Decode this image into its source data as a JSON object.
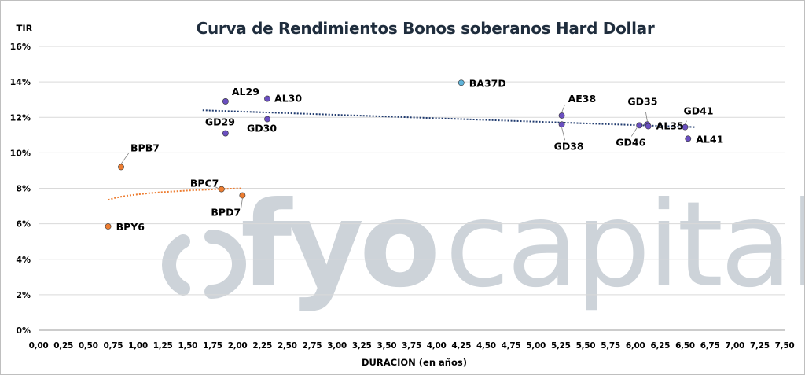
{
  "chart_data": {
    "type": "scatter",
    "title": "Curva de Rendimientos Bonos soberanos Hard Dollar",
    "ylabel": "TIR",
    "xlabel": "DURACION (en años)",
    "xlim": [
      0,
      7.5
    ],
    "ylim": [
      0,
      16
    ],
    "x_ticks": [
      "0,00",
      "0,25",
      "0,50",
      "0,75",
      "1,00",
      "1,25",
      "1,50",
      "1,75",
      "2,00",
      "2,25",
      "2,50",
      "2,75",
      "3,00",
      "3,25",
      "3,50",
      "3,75",
      "4,00",
      "4,25",
      "4,50",
      "4,75",
      "5,00",
      "5,25",
      "5,50",
      "5,75",
      "6,00",
      "6,25",
      "6,50",
      "6,75",
      "7,00",
      "7,25",
      "7,50"
    ],
    "y_ticks": [
      "0%",
      "2%",
      "4%",
      "6%",
      "8%",
      "10%",
      "12%",
      "14%",
      "16%"
    ],
    "grid": "horizontal",
    "watermark": "fyocapital",
    "colors": {
      "soberanos": "#6a4fc0",
      "provinciales": "#ed7d31",
      "ba37d": "#5fb3d9",
      "trend_soberanos": "#1f3a6e",
      "trend_provinciales": "#ed7d31"
    },
    "series": [
      {
        "group": "soberanos",
        "points": [
          {
            "label": "AL29",
            "x": 1.88,
            "y": 12.9
          },
          {
            "label": "AL30",
            "x": 2.3,
            "y": 13.05
          },
          {
            "label": "GD29",
            "x": 1.88,
            "y": 11.1
          },
          {
            "label": "GD30",
            "x": 2.3,
            "y": 11.9
          },
          {
            "label": "AE38",
            "x": 5.26,
            "y": 12.1
          },
          {
            "label": "GD38",
            "x": 5.26,
            "y": 11.6
          },
          {
            "label": "GD35",
            "x": 6.12,
            "y": 11.6
          },
          {
            "label": "GD46",
            "x": 6.04,
            "y": 11.55
          },
          {
            "label": "AL35",
            "x": 6.13,
            "y": 11.5
          },
          {
            "label": "GD41",
            "x": 6.5,
            "y": 11.45
          },
          {
            "label": "AL41",
            "x": 6.53,
            "y": 10.8
          }
        ]
      },
      {
        "group": "provinciales",
        "points": [
          {
            "label": "BPB7",
            "x": 0.83,
            "y": 9.2
          },
          {
            "label": "BPC7",
            "x": 1.84,
            "y": 7.95
          },
          {
            "label": "BPD7",
            "x": 2.05,
            "y": 7.6
          },
          {
            "label": "BPY6",
            "x": 0.7,
            "y": 5.85
          }
        ]
      },
      {
        "group": "ba37d",
        "points": [
          {
            "label": "BA37D",
            "x": 4.25,
            "y": 13.95
          }
        ]
      }
    ],
    "trendlines": [
      {
        "group": "soberanos",
        "x": [
          1.65,
          6.6
        ],
        "y": [
          12.4,
          11.45
        ]
      },
      {
        "group": "provinciales",
        "x": [
          0.7,
          2.05
        ],
        "y": [
          7.35,
          8.0
        ]
      }
    ]
  }
}
